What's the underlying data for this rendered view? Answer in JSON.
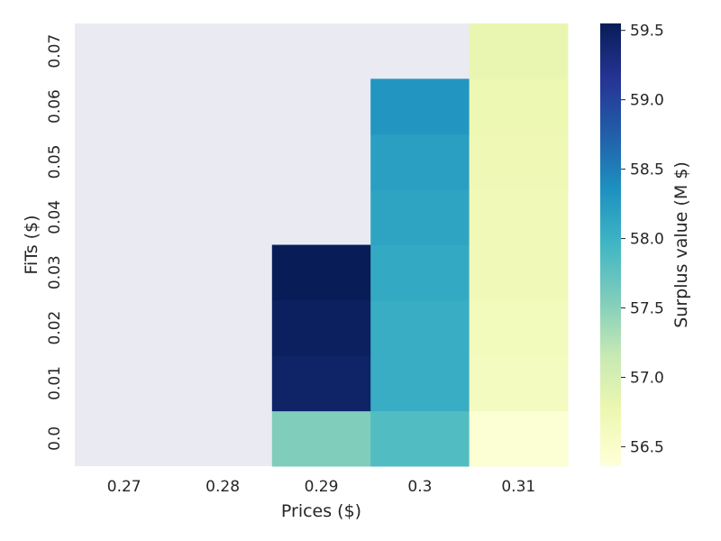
{
  "chart_data": {
    "type": "heatmap",
    "xlabel": "Prices ($)",
    "ylabel": "FiTs ($)",
    "x_categories": [
      "0.27",
      "0.28",
      "0.29",
      "0.3",
      "0.31"
    ],
    "y_categories": [
      "0.0",
      "0.01",
      "0.02",
      "0.03",
      "0.04",
      "0.05",
      "0.06",
      "0.07"
    ],
    "values": [
      [
        null,
        null,
        57.55,
        57.85,
        56.42
      ],
      [
        null,
        null,
        59.45,
        58.05,
        56.6
      ],
      [
        null,
        null,
        59.5,
        58.05,
        56.65
      ],
      [
        null,
        null,
        59.55,
        58.1,
        56.68
      ],
      [
        null,
        null,
        null,
        58.15,
        56.7
      ],
      [
        null,
        null,
        null,
        58.2,
        56.72
      ],
      [
        null,
        null,
        null,
        58.3,
        56.75
      ],
      [
        null,
        null,
        null,
        null,
        56.8
      ]
    ],
    "colorbar": {
      "label": "Surplus value (M $)",
      "min": 56.36,
      "max": 59.55,
      "ticks": [
        "56.5",
        "57.0",
        "57.5",
        "58.0",
        "58.5",
        "59.0",
        "59.5"
      ],
      "colormap": "YlGnBu"
    },
    "missing_color": "#eaeaf2"
  }
}
